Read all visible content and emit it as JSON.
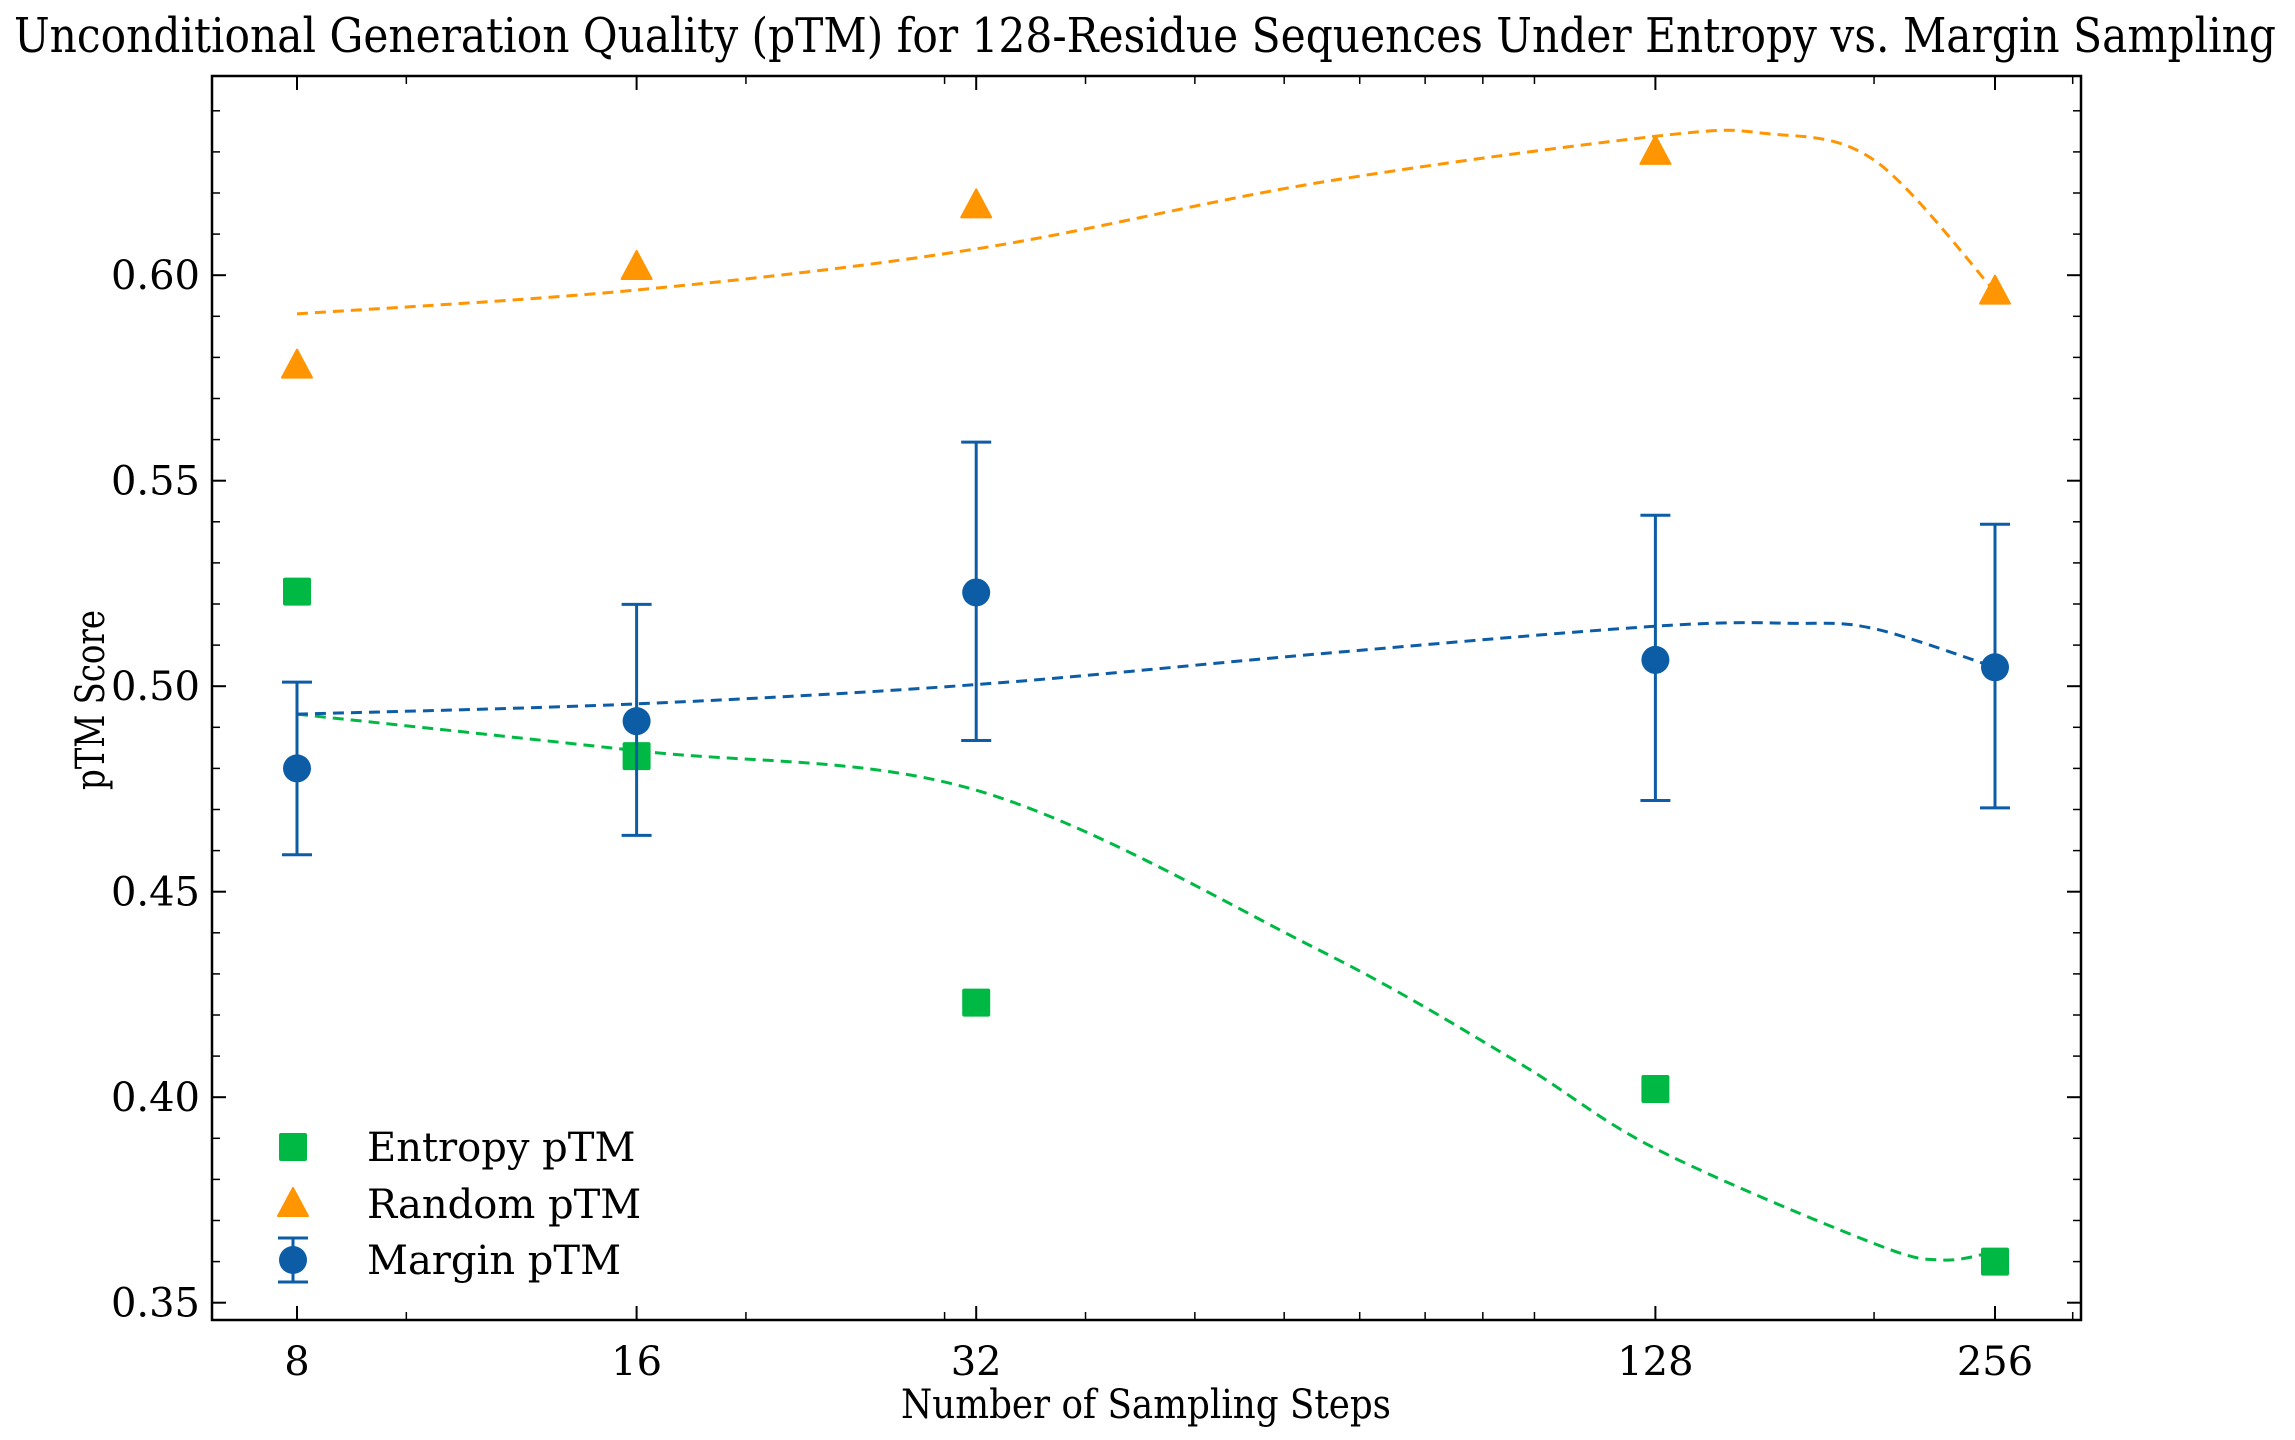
{
  "chart_data": {
    "type": "scatter",
    "title": "Unconditional Generation Quality (pTM) for 128-Residue Sequences Under Entropy vs. Margin Sampling",
    "xlabel": "Number of Sampling Steps",
    "ylabel": "pTM Score",
    "xscale": "log2",
    "xlim": [
      6.73,
      304
    ],
    "ylim": [
      0.3457,
      0.6484
    ],
    "xticks": [
      8,
      16,
      32,
      128,
      256
    ],
    "xtick_labels": [
      "8",
      "16",
      "32",
      "128",
      "256"
    ],
    "yticks": [
      0.35,
      0.4,
      0.45,
      0.5,
      0.55,
      0.6
    ],
    "ytick_labels": [
      "0.35",
      "0.40",
      "0.45",
      "0.50",
      "0.55",
      "0.60"
    ],
    "grid": false,
    "legend_placement": "lower-left",
    "x": [
      8,
      16,
      32,
      128,
      256
    ],
    "series": [
      {
        "name": "Entropy pTM",
        "marker": "square",
        "color": "#00B945",
        "values": [
          0.523,
          0.483,
          0.423,
          0.402,
          0.36
        ],
        "trend": {
          "x": [
            8,
            16,
            32,
            64,
            96,
            128,
            200,
            230,
            256
          ],
          "y": [
            0.4932,
            0.4843,
            0.4747,
            0.4362,
            0.409,
            0.3875,
            0.3644,
            0.3604,
            0.3625
          ]
        }
      },
      {
        "name": "Random pTM",
        "marker": "triangle",
        "color": "#FF9500",
        "values": [
          0.578,
          0.602,
          0.617,
          0.63,
          0.596
        ],
        "trend": {
          "x": [
            8,
            16,
            32,
            64,
            128,
            160,
            200,
            256
          ],
          "y": [
            0.5906,
            0.5964,
            0.6064,
            0.6224,
            0.6338,
            0.6345,
            0.628,
            0.596
          ]
        }
      },
      {
        "name": "Margin pTM",
        "marker": "circle",
        "color": "#0C5DA5",
        "values": [
          0.48,
          0.4915,
          0.5228,
          0.5064,
          0.5046
        ],
        "err_low": [
          0.459,
          0.4637,
          0.4868,
          0.4722,
          0.4704
        ],
        "err_high": [
          0.501,
          0.5199,
          0.5594,
          0.5416,
          0.5394
        ],
        "trend": {
          "x": [
            8,
            16,
            32,
            64,
            128,
            170,
            200,
            256
          ],
          "y": [
            0.4932,
            0.4957,
            0.5004,
            0.5078,
            0.5146,
            0.5153,
            0.514,
            0.5046
          ]
        }
      }
    ]
  }
}
